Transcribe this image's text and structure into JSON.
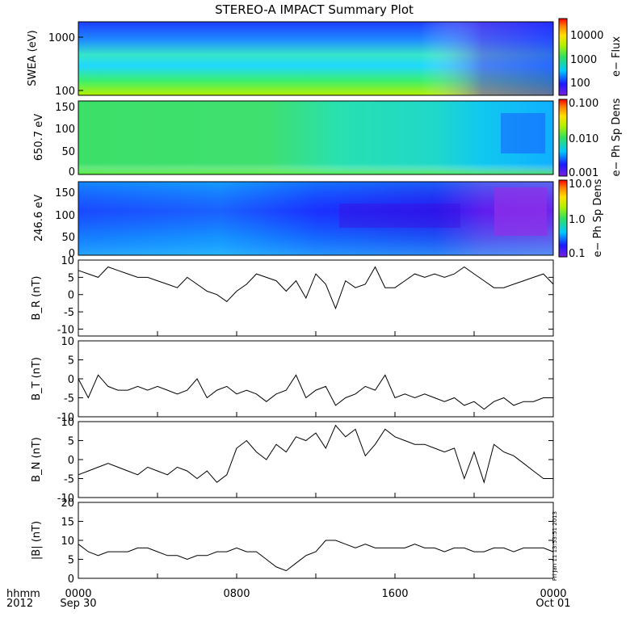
{
  "title": "STEREO-A IMPACT Summary Plot",
  "x_axis": {
    "ticks": [
      "0000",
      "0800",
      "1600",
      "0000"
    ],
    "dates": [
      "Sep 30",
      "Oct 01"
    ],
    "label_top": "hhmm",
    "label_bottom": "2012"
  },
  "stamp": "Fri Jan 11 13:53:51 2013",
  "spectrograms": [
    {
      "ylabel": "SWEA (eV)",
      "yticks": [
        "1000",
        "100"
      ],
      "colorbar_label": "e− Flux",
      "colorbar_ticks": [
        "10000",
        "1000",
        "100"
      ],
      "colorbar_scale": "log"
    },
    {
      "ylabel": "650.7 eV",
      "yticks": [
        "150",
        "100",
        "50",
        "0"
      ],
      "colorbar_label": "e− Ph Sp Dens",
      "colorbar_ticks": [
        "0.100",
        "0.010",
        "0.001"
      ],
      "colorbar_scale": "log"
    },
    {
      "ylabel": "246.6 eV",
      "yticks": [
        "150",
        "100",
        "50",
        "0"
      ],
      "colorbar_label": "e− Ph Sp Dens",
      "colorbar_ticks": [
        "10.0",
        "1.0",
        "0.1"
      ],
      "colorbar_scale": "log"
    }
  ],
  "colors": {
    "line": "#000000",
    "frame": "#000000",
    "colormap": [
      "#7a1fe0",
      "#1a1aff",
      "#00c8ff",
      "#30e060",
      "#b0f000",
      "#ffe000",
      "#ff8000",
      "#ff0000"
    ]
  },
  "chart_data": [
    {
      "type": "line",
      "ylabel": "B_R (nT)",
      "ylim": [
        -12,
        10
      ],
      "yticks": [
        "10",
        "5",
        "0",
        "-5",
        "-10"
      ],
      "x": [
        0,
        0.5,
        1,
        1.5,
        2,
        2.5,
        3,
        3.5,
        4,
        4.5,
        5,
        5.5,
        6,
        6.5,
        7,
        7.5,
        8,
        8.5,
        9,
        9.5,
        10,
        10.5,
        11,
        11.5,
        12,
        12.5,
        13,
        13.5,
        14,
        14.5,
        15,
        15.5,
        16,
        16.5,
        17,
        17.5,
        18,
        18.5,
        19,
        19.5,
        20,
        20.5,
        21,
        21.5,
        22,
        22.5,
        23,
        23.5,
        24
      ],
      "y": [
        7,
        6,
        5,
        8,
        7,
        6,
        5,
        5,
        4,
        3,
        2,
        5,
        3,
        1,
        0,
        -2,
        1,
        3,
        6,
        5,
        4,
        1,
        4,
        -1,
        6,
        3,
        -4,
        4,
        2,
        3,
        8,
        2,
        2,
        4,
        6,
        5,
        6,
        5,
        6,
        8,
        6,
        4,
        2,
        2,
        3,
        4,
        5,
        6,
        3
      ]
    },
    {
      "type": "line",
      "ylabel": "B_T (nT)",
      "ylim": [
        -10,
        10
      ],
      "yticks": [
        "10",
        "5",
        "0",
        "-5",
        "-10"
      ],
      "x": [
        0,
        0.5,
        1,
        1.5,
        2,
        2.5,
        3,
        3.5,
        4,
        4.5,
        5,
        5.5,
        6,
        6.5,
        7,
        7.5,
        8,
        8.5,
        9,
        9.5,
        10,
        10.5,
        11,
        11.5,
        12,
        12.5,
        13,
        13.5,
        14,
        14.5,
        15,
        15.5,
        16,
        16.5,
        17,
        17.5,
        18,
        18.5,
        19,
        19.5,
        20,
        20.5,
        21,
        21.5,
        22,
        22.5,
        23,
        23.5,
        24
      ],
      "y": [
        0,
        -5,
        1,
        -2,
        -3,
        -3,
        -2,
        -3,
        -2,
        -3,
        -4,
        -3,
        0,
        -5,
        -3,
        -2,
        -4,
        -3,
        -4,
        -6,
        -4,
        -3,
        1,
        -5,
        -3,
        -2,
        -7,
        -5,
        -4,
        -2,
        -3,
        1,
        -5,
        -4,
        -5,
        -4,
        -5,
        -6,
        -5,
        -7,
        -6,
        -8,
        -6,
        -5,
        -7,
        -6,
        -6,
        -5,
        -5
      ]
    },
    {
      "type": "line",
      "ylabel": "B_N (nT)",
      "ylim": [
        -10,
        10
      ],
      "yticks": [
        "10",
        "5",
        "0",
        "-5",
        "-10"
      ],
      "x": [
        0,
        0.5,
        1,
        1.5,
        2,
        2.5,
        3,
        3.5,
        4,
        4.5,
        5,
        5.5,
        6,
        6.5,
        7,
        7.5,
        8,
        8.5,
        9,
        9.5,
        10,
        10.5,
        11,
        11.5,
        12,
        12.5,
        13,
        13.5,
        14,
        14.5,
        15,
        15.5,
        16,
        16.5,
        17,
        17.5,
        18,
        18.5,
        19,
        19.5,
        20,
        20.5,
        21,
        21.5,
        22,
        22.5,
        23,
        23.5,
        24
      ],
      "y": [
        -4,
        -3,
        -2,
        -1,
        -2,
        -3,
        -4,
        -2,
        -3,
        -4,
        -2,
        -3,
        -5,
        -3,
        -6,
        -4,
        3,
        5,
        2,
        0,
        4,
        2,
        6,
        5,
        7,
        3,
        9,
        6,
        8,
        1,
        4,
        8,
        6,
        5,
        4,
        4,
        3,
        2,
        3,
        -5,
        2,
        -6,
        4,
        2,
        1,
        -1,
        -3,
        -5,
        -5
      ]
    },
    {
      "type": "line",
      "ylabel": "|B| (nT)",
      "ylim": [
        0,
        20
      ],
      "yticks": [
        "20",
        "15",
        "10",
        "5",
        "0"
      ],
      "x": [
        0,
        0.5,
        1,
        1.5,
        2,
        2.5,
        3,
        3.5,
        4,
        4.5,
        5,
        5.5,
        6,
        6.5,
        7,
        7.5,
        8,
        8.5,
        9,
        9.5,
        10,
        10.5,
        11,
        11.5,
        12,
        12.5,
        13,
        13.5,
        14,
        14.5,
        15,
        15.5,
        16,
        16.5,
        17,
        17.5,
        18,
        18.5,
        19,
        19.5,
        20,
        20.5,
        21,
        21.5,
        22,
        22.5,
        23,
        23.5,
        24
      ],
      "y": [
        9,
        7,
        6,
        7,
        7,
        7,
        8,
        8,
        7,
        6,
        6,
        5,
        6,
        6,
        7,
        7,
        8,
        7,
        7,
        5,
        3,
        2,
        4,
        6,
        7,
        10,
        10,
        9,
        8,
        9,
        8,
        8,
        8,
        8,
        9,
        8,
        8,
        7,
        8,
        8,
        7,
        7,
        8,
        8,
        7,
        8,
        8,
        8,
        7
      ]
    }
  ]
}
